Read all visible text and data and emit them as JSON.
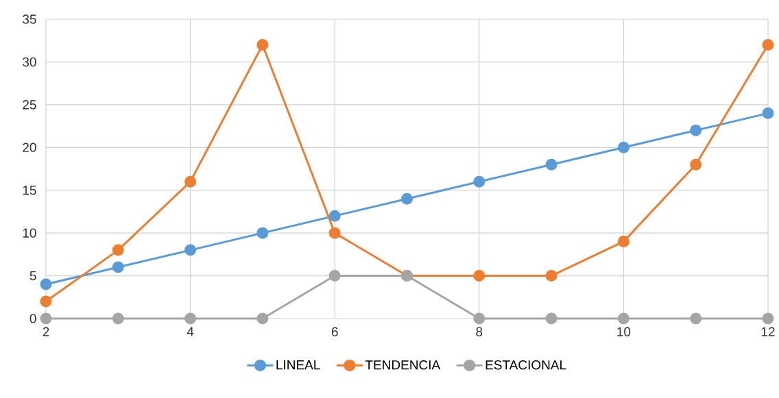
{
  "chart_data": {
    "type": "line",
    "x": [
      2,
      3,
      4,
      5,
      6,
      7,
      8,
      9,
      10,
      11,
      12
    ],
    "series": [
      {
        "name": "LINEAL",
        "color": "#5b9bd5",
        "values": [
          4,
          6,
          8,
          10,
          12,
          14,
          16,
          18,
          20,
          22,
          24
        ]
      },
      {
        "name": "TENDENCIA",
        "color": "#ed7d31",
        "values": [
          2,
          8,
          16,
          32,
          10,
          5,
          5,
          5,
          9,
          18,
          32
        ]
      },
      {
        "name": "ESTACIONAL",
        "color": "#a5a5a5",
        "values": [
          0,
          0,
          0,
          0,
          5,
          5,
          0,
          0,
          0,
          0,
          0
        ]
      }
    ],
    "xlim": [
      2,
      12
    ],
    "xticks": [
      2,
      4,
      6,
      8,
      10,
      12
    ],
    "ylim": [
      0,
      35
    ],
    "yticks": [
      0,
      5,
      10,
      15,
      20,
      25,
      30,
      35
    ],
    "grid": true,
    "legend": "bottom",
    "marker": "circle",
    "line_style": "solid"
  }
}
